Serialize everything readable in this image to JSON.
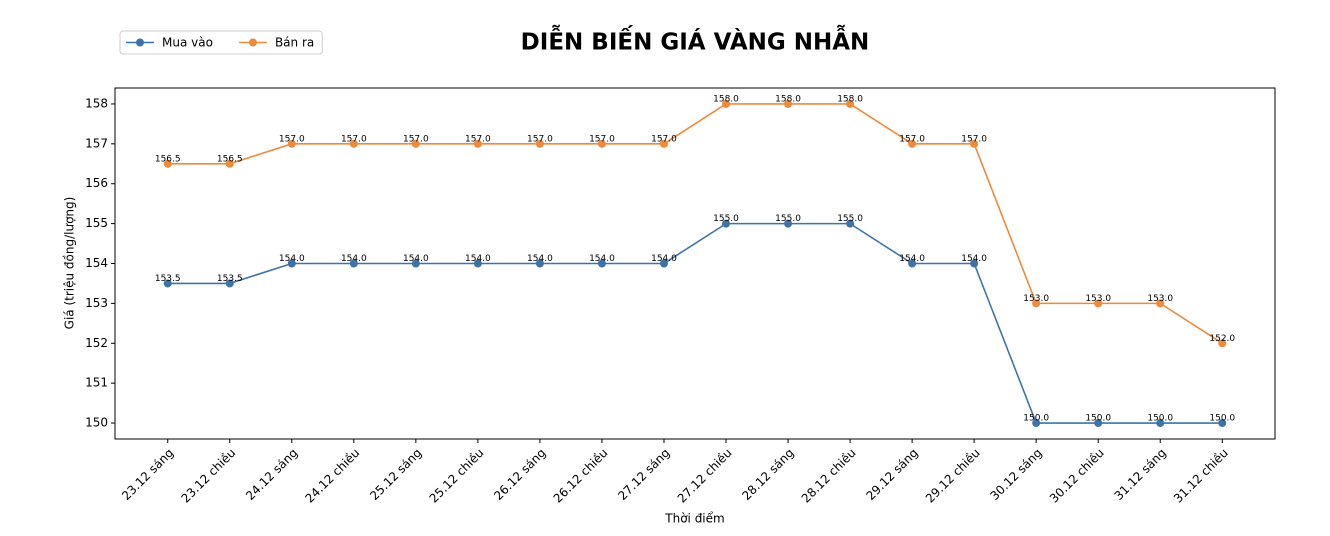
{
  "chart_data": {
    "type": "line",
    "title": "DIỄN BIẾN GIÁ VÀNG NHẪN",
    "x_label": "Thời điểm",
    "y_label": "Giá (triệu đồng/lượng)",
    "categories": [
      "23.12 sáng",
      "23.12 chiều",
      "24.12 sáng",
      "24.12 chiều",
      "25.12 sáng",
      "25.12 chiều",
      "26.12 sáng",
      "26.12 chiều",
      "27.12 sáng",
      "27.12 chiều",
      "28.12 sáng",
      "28.12 chiều",
      "29.12 sáng",
      "29.12 chiều",
      "30.12 sáng",
      "30.12 chiều",
      "31.12 sáng",
      "31.12 chiều"
    ],
    "series": [
      {
        "name": "Mua vào",
        "color": "#3d74a8",
        "values": [
          153.5,
          153.5,
          154,
          154,
          154,
          154,
          154,
          154,
          154,
          155,
          155,
          155,
          154,
          154,
          150,
          150,
          150,
          150
        ],
        "value_labels": [
          "153.5",
          "153.5",
          "154.0",
          "154.0",
          "154.0",
          "154.0",
          "154.0",
          "154.0",
          "154.0",
          "155.0",
          "155.0",
          "155.0",
          "154.0",
          "154.0",
          "150.0",
          "150.0",
          "150.0",
          "150.0"
        ]
      },
      {
        "name": "Bán ra",
        "color": "#ee8a3a",
        "values": [
          156.5,
          156.5,
          157,
          157,
          157,
          157,
          157,
          157,
          157,
          158,
          158,
          158,
          157,
          157,
          153,
          153,
          153,
          152
        ],
        "value_labels": [
          "156.5",
          "156.5",
          "157.0",
          "157.0",
          "157.0",
          "157.0",
          "157.0",
          "157.0",
          "157.0",
          "158.0",
          "158.0",
          "158.0",
          "157.0",
          "157.0",
          "153.0",
          "153.0",
          "153.0",
          "152.0"
        ]
      }
    ],
    "ylim": [
      149.6,
      158.4
    ],
    "yticks": [
      150,
      151,
      152,
      153,
      154,
      155,
      156,
      157,
      158
    ],
    "grid": false,
    "legend": "upper left"
  }
}
